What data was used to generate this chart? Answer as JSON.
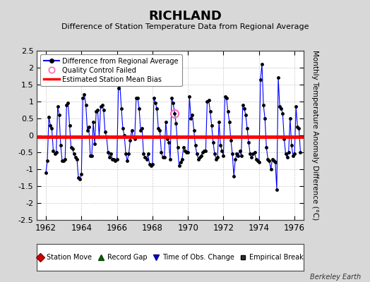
{
  "title": "RICHLAND",
  "subtitle": "Difference of Station Temperature Data from Regional Average",
  "ylabel": "Monthly Temperature Anomaly Difference (°C)",
  "xlabel_years": [
    1962,
    1964,
    1966,
    1968,
    1970,
    1972,
    1974,
    1976
  ],
  "ylim": [
    -2.5,
    2.5
  ],
  "xlim": [
    1961.5,
    1976.5
  ],
  "bias_value": -0.05,
  "line_color": "#0000FF",
  "bias_color": "#FF0000",
  "marker_color": "#000000",
  "qc_fail_x": 1969.25,
  "qc_fail_y": 0.65,
  "background_color": "#D8D8D8",
  "plot_bg_color": "#FFFFFF",
  "watermark": "Berkeley Earth",
  "yticks": [
    -2.5,
    -2,
    -1.5,
    -1,
    -0.5,
    0,
    0.5,
    1,
    1.5,
    2,
    2.5
  ],
  "monthly_data": [
    1962.0,
    -1.1,
    1962.083,
    -0.75,
    1962.167,
    0.55,
    1962.25,
    0.3,
    1962.333,
    0.2,
    1962.417,
    -0.45,
    1962.5,
    -0.55,
    1962.583,
    -0.5,
    1962.667,
    0.85,
    1962.75,
    0.6,
    1962.833,
    -0.3,
    1962.917,
    -0.75,
    1963.0,
    -0.75,
    1963.083,
    -0.7,
    1963.167,
    0.9,
    1963.25,
    0.95,
    1963.333,
    0.3,
    1963.417,
    -0.35,
    1963.5,
    -0.4,
    1963.583,
    -0.55,
    1963.667,
    -0.65,
    1963.75,
    -0.7,
    1963.833,
    -1.25,
    1963.917,
    -1.3,
    1964.0,
    -1.15,
    1964.083,
    1.1,
    1964.167,
    1.2,
    1964.25,
    0.9,
    1964.333,
    0.15,
    1964.417,
    0.25,
    1964.5,
    -0.6,
    1964.583,
    -0.6,
    1964.667,
    0.4,
    1964.75,
    -0.25,
    1964.833,
    0.7,
    1964.917,
    0.75,
    1965.0,
    -0.05,
    1965.083,
    0.85,
    1965.167,
    0.9,
    1965.25,
    0.75,
    1965.333,
    0.1,
    1965.417,
    -0.05,
    1965.5,
    -0.5,
    1965.583,
    -0.65,
    1965.667,
    -0.55,
    1965.75,
    -0.7,
    1965.833,
    -0.7,
    1965.917,
    -0.75,
    1966.0,
    -0.7,
    1966.083,
    1.4,
    1966.167,
    1.5,
    1966.25,
    0.8,
    1966.333,
    0.2,
    1966.417,
    0.0,
    1966.5,
    -0.55,
    1966.583,
    -0.75,
    1966.667,
    -0.55,
    1966.75,
    -0.15,
    1966.833,
    0.15,
    1966.917,
    -0.05,
    1967.0,
    -0.1,
    1967.083,
    1.1,
    1967.167,
    1.1,
    1967.25,
    0.8,
    1967.333,
    0.15,
    1967.417,
    0.2,
    1967.5,
    -0.55,
    1967.583,
    -0.65,
    1967.667,
    -0.7,
    1967.75,
    -0.55,
    1967.833,
    -0.85,
    1967.917,
    -0.9,
    1968.0,
    -0.85,
    1968.083,
    1.1,
    1968.167,
    0.95,
    1968.25,
    0.8,
    1968.333,
    0.2,
    1968.417,
    0.15,
    1968.5,
    -0.5,
    1968.583,
    -0.65,
    1968.667,
    -0.65,
    1968.75,
    0.4,
    1968.833,
    -0.1,
    1968.917,
    -0.2,
    1969.0,
    -0.7,
    1969.083,
    1.1,
    1969.167,
    0.95,
    1969.25,
    0.65,
    1969.333,
    0.35,
    1969.417,
    -0.35,
    1969.5,
    -0.9,
    1969.583,
    -0.8,
    1969.667,
    -0.7,
    1969.75,
    -0.35,
    1969.833,
    -0.45,
    1969.917,
    -0.5,
    1970.0,
    -0.5,
    1970.083,
    1.15,
    1970.167,
    0.5,
    1970.25,
    0.6,
    1970.333,
    0.15,
    1970.417,
    -0.3,
    1970.5,
    -0.55,
    1970.583,
    -0.7,
    1970.667,
    -0.65,
    1970.75,
    -0.6,
    1970.833,
    -0.5,
    1970.917,
    -0.45,
    1971.0,
    -0.45,
    1971.083,
    1.0,
    1971.167,
    1.05,
    1971.25,
    0.7,
    1971.333,
    0.3,
    1971.417,
    -0.2,
    1971.5,
    -0.55,
    1971.583,
    -0.7,
    1971.667,
    -0.65,
    1971.75,
    0.4,
    1971.833,
    -0.3,
    1971.917,
    -0.45,
    1972.0,
    -0.6,
    1972.083,
    1.15,
    1972.167,
    1.1,
    1972.25,
    0.7,
    1972.333,
    0.4,
    1972.417,
    -0.15,
    1972.5,
    -0.55,
    1972.583,
    -1.2,
    1972.667,
    -0.7,
    1972.75,
    -0.55,
    1972.833,
    -0.6,
    1972.917,
    -0.45,
    1973.0,
    -0.6,
    1973.083,
    0.9,
    1973.167,
    0.8,
    1973.25,
    0.6,
    1973.333,
    0.2,
    1973.417,
    -0.2,
    1973.5,
    -0.55,
    1973.583,
    -0.65,
    1973.667,
    -0.55,
    1973.75,
    -0.5,
    1973.833,
    -0.7,
    1973.917,
    -0.75,
    1974.0,
    -0.8,
    1974.083,
    1.65,
    1974.167,
    2.1,
    1974.25,
    0.9,
    1974.333,
    0.5,
    1974.417,
    -0.35,
    1974.5,
    -0.7,
    1974.583,
    -0.75,
    1974.667,
    -1.0,
    1974.75,
    -0.7,
    1974.833,
    -0.75,
    1974.917,
    -0.8,
    1975.0,
    -1.6,
    1975.083,
    1.7,
    1975.167,
    0.85,
    1975.25,
    0.8,
    1975.333,
    0.65,
    1975.417,
    -0.1,
    1975.5,
    -0.55,
    1975.583,
    -0.65,
    1975.667,
    -0.5,
    1975.75,
    0.5,
    1975.833,
    -0.3,
    1975.917,
    -0.6,
    1976.0,
    -0.55,
    1976.083,
    0.85,
    1976.167,
    0.25,
    1976.25,
    0.2,
    1976.333,
    -0.5
  ]
}
